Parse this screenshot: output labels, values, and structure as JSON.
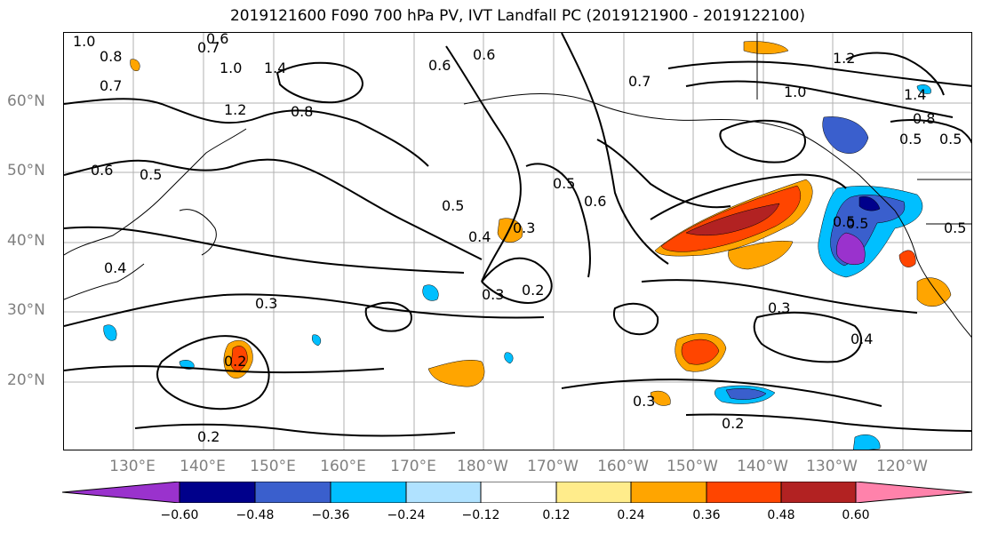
{
  "title": "2019121600 F090 700 hPa PV, IVT Landfall PC (2019121900 - 2019122100)",
  "lat_labels": [
    "60°N",
    "50°N",
    "40°N",
    "30°N",
    "20°N"
  ],
  "lon_labels": [
    "130°E",
    "140°E",
    "150°E",
    "160°E",
    "170°E",
    "180°W",
    "170°W",
    "160°W",
    "150°W",
    "140°W",
    "130°W",
    "120°W"
  ],
  "colorbar": {
    "ticks": [
      "−0.60",
      "−0.48",
      "−0.36",
      "−0.24",
      "−0.12",
      "0.12",
      "0.24",
      "0.36",
      "0.48",
      "0.60"
    ],
    "colors": [
      "#9a32cd",
      "#00008b",
      "#3a5fcd",
      "#00bfff",
      "#b0e2ff",
      "#ffffff",
      "#ffec8b",
      "#ffa500",
      "#ff4500",
      "#b22222",
      "#ff82ab"
    ]
  },
  "contour_labels": [
    "1.0",
    "0.6",
    "0.7",
    "0.8",
    "0.7",
    "1.0",
    "1.4",
    "1.2",
    "0.8",
    "0.6",
    "0.6",
    "0.7",
    "1.2",
    "1.0",
    "1.4",
    "0.8",
    "0.5",
    "0.6",
    "0.5",
    "0.5",
    "0.5",
    "0.6",
    "0.5",
    "0.4",
    "0.3",
    "0.3",
    "0.2",
    "0.4",
    "0.3",
    "0.3",
    "0.4",
    "0.2",
    "0.3",
    "0.2",
    "0.2",
    "0.5",
    "0.5",
    "0.5"
  ],
  "colors": {
    "grid": "#b0b0b0",
    "contour": "#000000",
    "axis_text": "#808080"
  }
}
